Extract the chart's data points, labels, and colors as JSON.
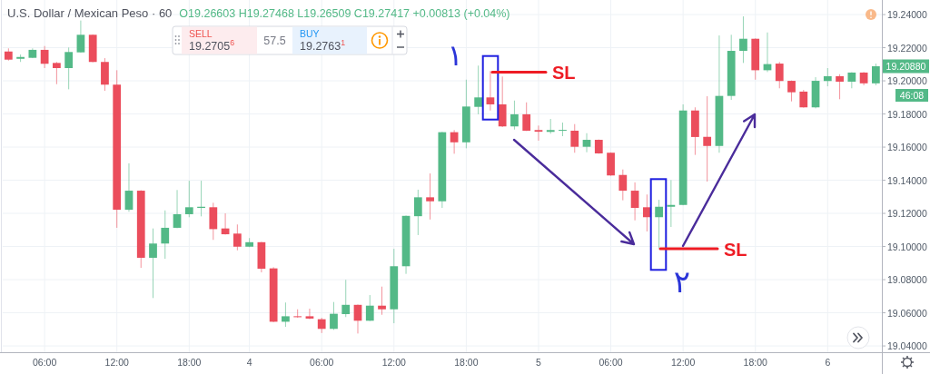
{
  "chart_data": {
    "type": "candlestick",
    "title": "U.S. Dollar / Mexican Peso · 60",
    "subtitle": "O19.26603 H19.27468 L19.26509 C19.27417 +0.00813 (+0.04%)",
    "categories": [
      null,
      null,
      null,
      "06:00",
      null,
      null,
      null,
      null,
      null,
      "12:00",
      null,
      null,
      null,
      null,
      null,
      "18:00",
      null,
      null,
      null,
      null,
      "4",
      null,
      null,
      null,
      null,
      null,
      "06:00",
      null,
      null,
      null,
      null,
      null,
      "12:00",
      null,
      null,
      null,
      null,
      null,
      "18:00",
      null,
      null,
      null,
      null,
      null,
      "5",
      null,
      null,
      null,
      null,
      null,
      "06:00",
      null,
      null,
      null,
      null,
      null,
      "12:00",
      null,
      null,
      null,
      null,
      null,
      "18:00",
      null,
      null,
      null,
      null,
      null,
      "6",
      null,
      null,
      null,
      null
    ],
    "ohlc": [
      [
        19.2177,
        19.2196,
        19.2122,
        19.2128
      ],
      [
        19.2133,
        19.2159,
        19.2114,
        19.2144
      ],
      [
        19.2139,
        19.2196,
        19.2137,
        19.2187
      ],
      [
        19.2187,
        19.221,
        19.2077,
        19.2103
      ],
      [
        19.2108,
        19.2114,
        19.198,
        19.2077
      ],
      [
        19.2077,
        19.2201,
        19.1949,
        19.2174
      ],
      [
        19.2172,
        19.2364,
        19.217,
        19.2278
      ],
      [
        19.2278,
        19.228,
        19.2112,
        19.2114
      ],
      [
        19.2114,
        19.2137,
        19.194,
        19.1977
      ],
      [
        19.1977,
        19.2064,
        19.1113,
        19.1222
      ],
      [
        19.1222,
        19.1502,
        19.121,
        19.1337
      ],
      [
        19.1337,
        19.134,
        19.0871,
        19.0932
      ],
      [
        19.0932,
        19.1109,
        19.0689,
        19.1018
      ],
      [
        19.1018,
        19.1218,
        19.0926,
        19.1113
      ],
      [
        19.1113,
        19.1341,
        19.111,
        19.1195
      ],
      [
        19.1195,
        19.1397,
        19.1177,
        19.1237
      ],
      [
        19.1233,
        19.1397,
        19.1182,
        19.124
      ],
      [
        19.1237,
        19.1264,
        19.104,
        19.1105
      ],
      [
        19.1109,
        19.12,
        19.1072,
        19.1074
      ],
      [
        19.1078,
        19.1133,
        19.0977,
        19.0999
      ],
      [
        19.0999,
        19.1051,
        19.0996,
        19.1026
      ],
      [
        19.1026,
        19.1028,
        19.0844,
        19.0866
      ],
      [
        19.0868,
        19.0875,
        19.0543,
        19.0546
      ],
      [
        19.0546,
        19.0662,
        19.0515,
        19.0579
      ],
      [
        19.0579,
        19.0621,
        19.057,
        19.0574
      ],
      [
        19.0579,
        19.0625,
        19.0561,
        19.0565
      ],
      [
        19.0561,
        19.057,
        19.0478,
        19.0503
      ],
      [
        19.0503,
        19.0665,
        19.0497,
        19.0594
      ],
      [
        19.0592,
        19.0799,
        19.0574,
        19.0648
      ],
      [
        19.0648,
        19.065,
        19.0475,
        19.0552
      ],
      [
        19.0552,
        19.0707,
        19.055,
        19.0643
      ],
      [
        19.0643,
        19.0758,
        19.0588,
        19.0621
      ],
      [
        19.0621,
        19.0986,
        19.0537,
        19.0881
      ],
      [
        19.0881,
        19.1187,
        19.0835,
        19.1185
      ],
      [
        19.1183,
        19.1343,
        19.1069,
        19.1297
      ],
      [
        19.1297,
        19.1441,
        19.1163,
        19.1273
      ],
      [
        19.1273,
        19.1692,
        19.1233,
        19.169
      ],
      [
        19.169,
        19.1703,
        19.156,
        19.1629
      ],
      [
        19.1629,
        19.2007,
        19.1593,
        19.1845
      ],
      [
        19.1843,
        19.2092,
        19.1798,
        19.19
      ],
      [
        19.19,
        19.2059,
        19.1821,
        19.1858
      ],
      [
        19.1858,
        19.2026,
        19.1721,
        19.1725
      ],
      [
        19.1725,
        19.1881,
        19.1706,
        19.1798
      ],
      [
        19.1798,
        19.187,
        19.1697,
        19.1699
      ],
      [
        19.1703,
        19.173,
        19.1639,
        19.1693
      ],
      [
        19.1692,
        19.177,
        19.1681,
        19.1703
      ],
      [
        19.1699,
        19.1748,
        19.1666,
        19.1704
      ],
      [
        19.1699,
        19.1739,
        19.1566,
        19.1602
      ],
      [
        19.1602,
        19.1684,
        19.1569,
        19.1644
      ],
      [
        19.1644,
        19.1646,
        19.156,
        19.1562
      ],
      [
        19.1566,
        19.1568,
        19.1427,
        19.1429
      ],
      [
        19.1432,
        19.1465,
        19.1279,
        19.1337
      ],
      [
        19.1337,
        19.1387,
        19.1158,
        19.1233
      ],
      [
        19.1237,
        19.1314,
        19.1091,
        19.1177
      ],
      [
        19.1177,
        19.1282,
        19.099,
        19.124
      ],
      [
        19.124,
        19.1401,
        19.1118,
        19.1251
      ],
      [
        19.1251,
        19.1858,
        19.1249,
        19.1821
      ],
      [
        19.1821,
        19.184,
        19.1553,
        19.1661
      ],
      [
        19.1662,
        19.1907,
        19.1392,
        19.1607
      ],
      [
        19.1607,
        19.2274,
        19.1566,
        19.1909
      ],
      [
        19.1909,
        19.2278,
        19.1885,
        19.2181
      ],
      [
        19.2181,
        19.2389,
        19.2108,
        19.2254
      ],
      [
        19.2254,
        19.2256,
        19.2007,
        19.2064
      ],
      [
        19.2064,
        19.2292,
        19.2053,
        19.2101
      ],
      [
        19.2104,
        19.2114,
        19.1955,
        19.1999
      ],
      [
        19.2,
        19.2002,
        19.1876,
        19.1931
      ],
      [
        19.1935,
        19.1945,
        19.1838,
        19.184
      ],
      [
        19.184,
        19.2022,
        19.1834,
        19.2
      ],
      [
        19.1999,
        19.2077,
        19.1967,
        19.2028
      ],
      [
        19.2028,
        19.204,
        19.1889,
        19.1995
      ],
      [
        19.1995,
        19.2052,
        19.1955,
        19.205
      ],
      [
        19.205,
        19.2053,
        19.1973,
        19.1985
      ],
      [
        19.1985,
        19.2104,
        19.1973,
        19.2088
      ]
    ],
    "colors": [
      "#eb4d5c",
      "#53b987",
      "#53b987",
      "#eb4d5c",
      "#eb4d5c",
      "#53b987",
      "#53b987",
      "#eb4d5c",
      "#eb4d5c",
      "#eb4d5c",
      "#53b987",
      "#eb4d5c",
      "#53b987",
      "#53b987",
      "#53b987",
      "#53b987",
      "#53b987",
      "#eb4d5c",
      "#eb4d5c",
      "#eb4d5c",
      "#53b987",
      "#eb4d5c",
      "#eb4d5c",
      "#53b987",
      "#eb4d5c",
      "#eb4d5c",
      "#eb4d5c",
      "#53b987",
      "#53b987",
      "#eb4d5c",
      "#53b987",
      "#eb4d5c",
      "#53b987",
      "#53b987",
      "#53b987",
      "#eb4d5c",
      "#53b987",
      "#eb4d5c",
      "#53b987",
      "#53b987",
      "#eb4d5c",
      "#eb4d5c",
      "#53b987",
      "#eb4d5c",
      "#eb4d5c",
      "#53b987",
      "#53b987",
      "#eb4d5c",
      "#53b987",
      "#eb4d5c",
      "#eb4d5c",
      "#eb4d5c",
      "#eb4d5c",
      "#eb4d5c",
      "#53b987",
      "#53b987",
      "#53b987",
      "#eb4d5c",
      "#eb4d5c",
      "#53b987",
      "#53b987",
      "#53b987",
      "#eb4d5c",
      "#53b987",
      "#eb4d5c",
      "#eb4d5c",
      "#eb4d5c",
      "#53b987",
      "#53b987",
      "#eb4d5c",
      "#53b987",
      "#eb4d5c",
      "#53b987"
    ],
    "ylim": [
      19.0362,
      19.2477
    ],
    "yticks": [
      {
        "value": 19.04,
        "label": "19.04000"
      },
      {
        "value": 19.06,
        "label": "19.06000"
      },
      {
        "value": 19.08,
        "label": "19.08000"
      },
      {
        "value": 19.1,
        "label": "19.10000"
      },
      {
        "value": 19.12,
        "label": "19.12000"
      },
      {
        "value": 19.14,
        "label": "19.14000"
      },
      {
        "value": 19.16,
        "label": "19.16000"
      },
      {
        "value": 19.18,
        "label": "19.18000"
      },
      {
        "value": 19.2,
        "label": "19.20000"
      },
      {
        "value": 19.22,
        "label": "19.22000"
      },
      {
        "value": 19.24,
        "label": "19.24000"
      }
    ],
    "grid": true,
    "ref_lines": [
      {
        "axis": "y",
        "value": 19.2053,
        "label": "SL",
        "color": "#ee1c24"
      },
      {
        "axis": "y",
        "value": 19.0986,
        "label": "SL",
        "color": "#ee1c24"
      }
    ],
    "annotations": [
      "۱",
      "۲",
      "SELL",
      "19.2705$^{6}$",
      "57.5",
      "BUY",
      "19.2763$^{1}$",
      "19.20880",
      "46:08"
    ]
  }
}
